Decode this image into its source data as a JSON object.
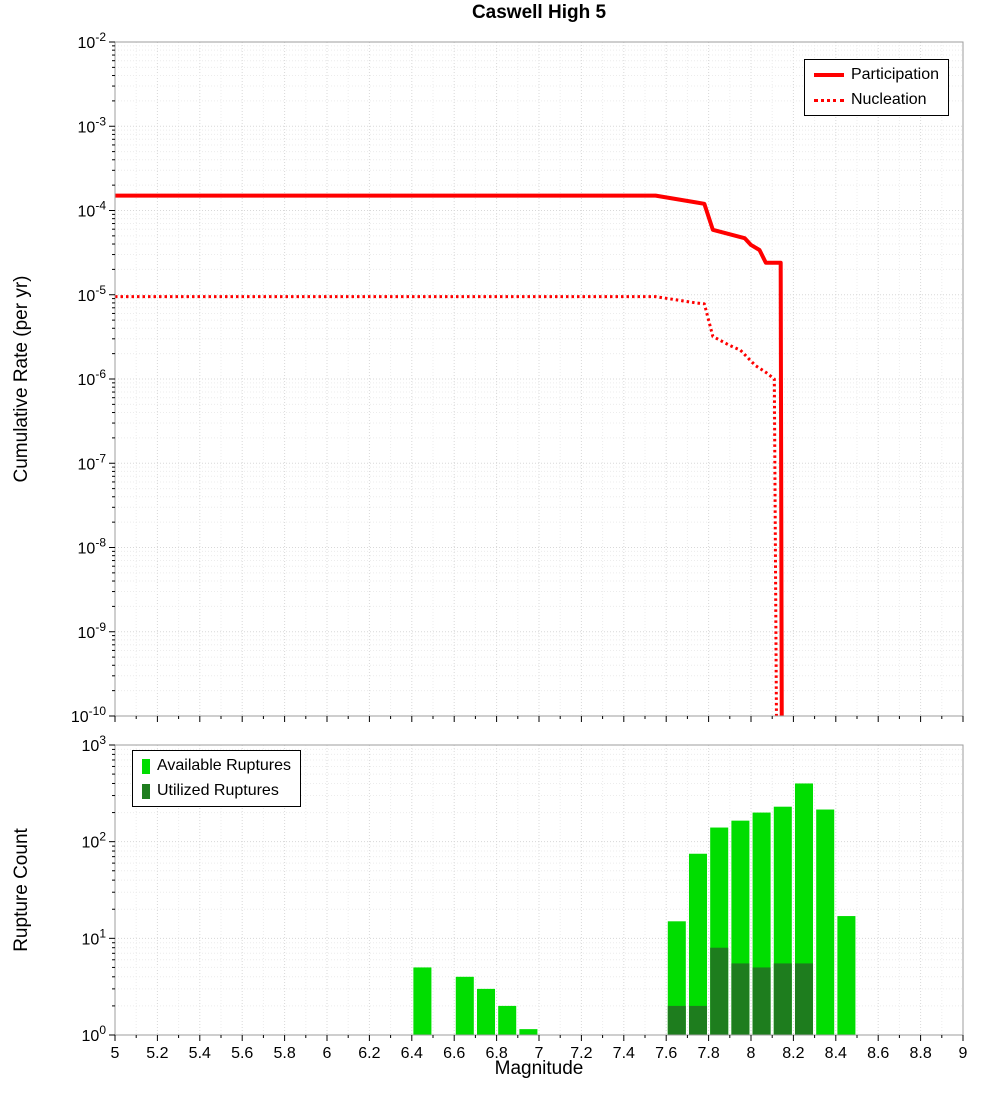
{
  "title": "Caswell High 5",
  "colors": {
    "grid_major": "#d8d8d8",
    "grid_minor": "#ececec",
    "axis_border": "#9e9e9e",
    "tick": "#000000",
    "text": "#000000"
  },
  "chart_data": [
    {
      "type": "line",
      "name": "cumulative-rate",
      "title": "Caswell High 5",
      "ylabel": "Cumulative Rate (per yr)",
      "xlim": [
        5,
        9
      ],
      "x_tick_step": 0.2,
      "yscale": "log",
      "ylim_exp": [
        -10,
        -2
      ],
      "grid": true,
      "legend_position": "top-right",
      "series": [
        {
          "name": "Participation",
          "style": "solid",
          "color": "#ff0000",
          "points": [
            [
              5.0,
              0.00015
            ],
            [
              7.55,
              0.00015
            ],
            [
              7.74,
              0.000125
            ],
            [
              7.78,
              0.00012
            ],
            [
              7.82,
              5.9e-05
            ],
            [
              7.97,
              4.7e-05
            ],
            [
              8.0,
              3.9e-05
            ],
            [
              8.04,
              3.4e-05
            ],
            [
              8.07,
              2.4e-05
            ],
            [
              8.14,
              2.4e-05
            ],
            [
              8.145,
              1e-10
            ]
          ]
        },
        {
          "name": "Nucleation",
          "style": "dotted",
          "color": "#ff0000",
          "points": [
            [
              5.0,
              9.5e-06
            ],
            [
              7.55,
              9.5e-06
            ],
            [
              7.74,
              8e-06
            ],
            [
              7.78,
              7.8e-06
            ],
            [
              7.82,
              3.2e-06
            ],
            [
              7.9,
              2.5e-06
            ],
            [
              7.95,
              2.2e-06
            ],
            [
              8.02,
              1.45e-06
            ],
            [
              8.07,
              1.2e-06
            ],
            [
              8.11,
              1e-06
            ],
            [
              8.12,
              1e-10
            ]
          ]
        }
      ]
    },
    {
      "type": "bar",
      "name": "rupture-count",
      "ylabel": "Rupture Count",
      "xlabel": "Magnitude",
      "xlim": [
        5,
        9
      ],
      "x_tick_step": 0.2,
      "yscale": "log",
      "ylim_exp": [
        0,
        3
      ],
      "bin_width": 0.1,
      "grid": true,
      "legend_position": "top-left",
      "categories": [
        6.45,
        6.65,
        6.75,
        6.85,
        6.95,
        7.65,
        7.75,
        7.85,
        7.95,
        8.05,
        8.15,
        8.25,
        8.35,
        8.45
      ],
      "series": [
        {
          "name": "Available Ruptures",
          "color": "#00dd00",
          "values": [
            5,
            4,
            3,
            2,
            1.15,
            15,
            75,
            140,
            165,
            200,
            230,
            400,
            215,
            17
          ]
        },
        {
          "name": "Utilized Ruptures",
          "color": "#1e7d1e",
          "values": [
            0,
            0,
            0,
            0,
            0,
            2,
            2,
            8,
            5.5,
            5,
            5.5,
            5.5,
            0,
            0
          ]
        }
      ]
    }
  ]
}
